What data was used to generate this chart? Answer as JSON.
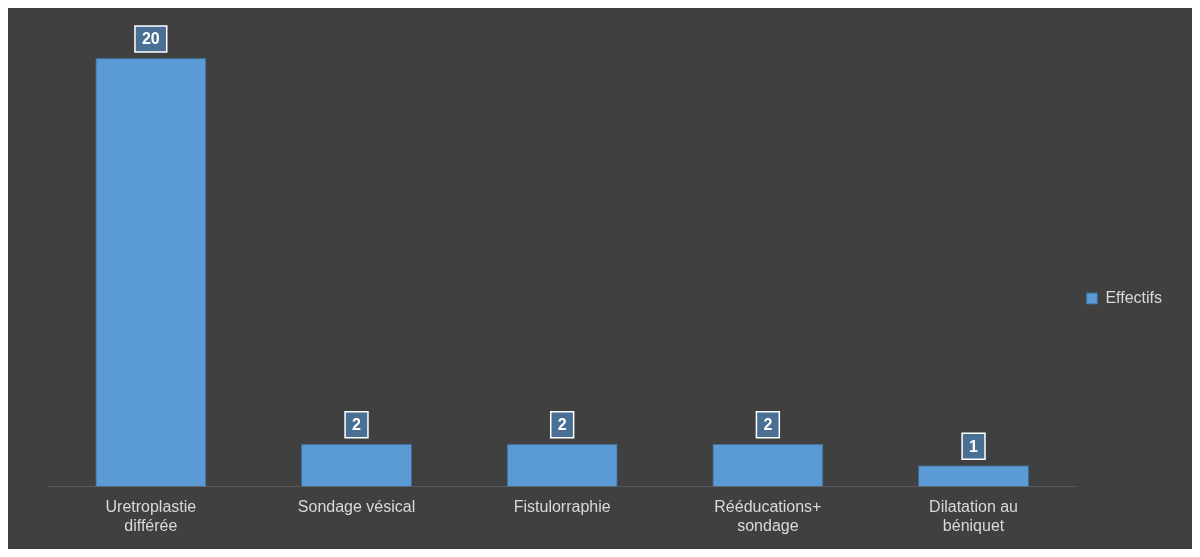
{
  "chart_data": {
    "type": "bar",
    "categories": [
      "Uretroplastie différée",
      "Sondage vésical",
      "Fistulorraphie",
      "Rééducations+ sondage",
      "Dilatation au béniquet"
    ],
    "series": [
      {
        "name": "Effectifs",
        "color": "#5b9bd5",
        "values": [
          20,
          2,
          2,
          2,
          1
        ]
      }
    ],
    "data_labels": true,
    "legend": "right"
  }
}
